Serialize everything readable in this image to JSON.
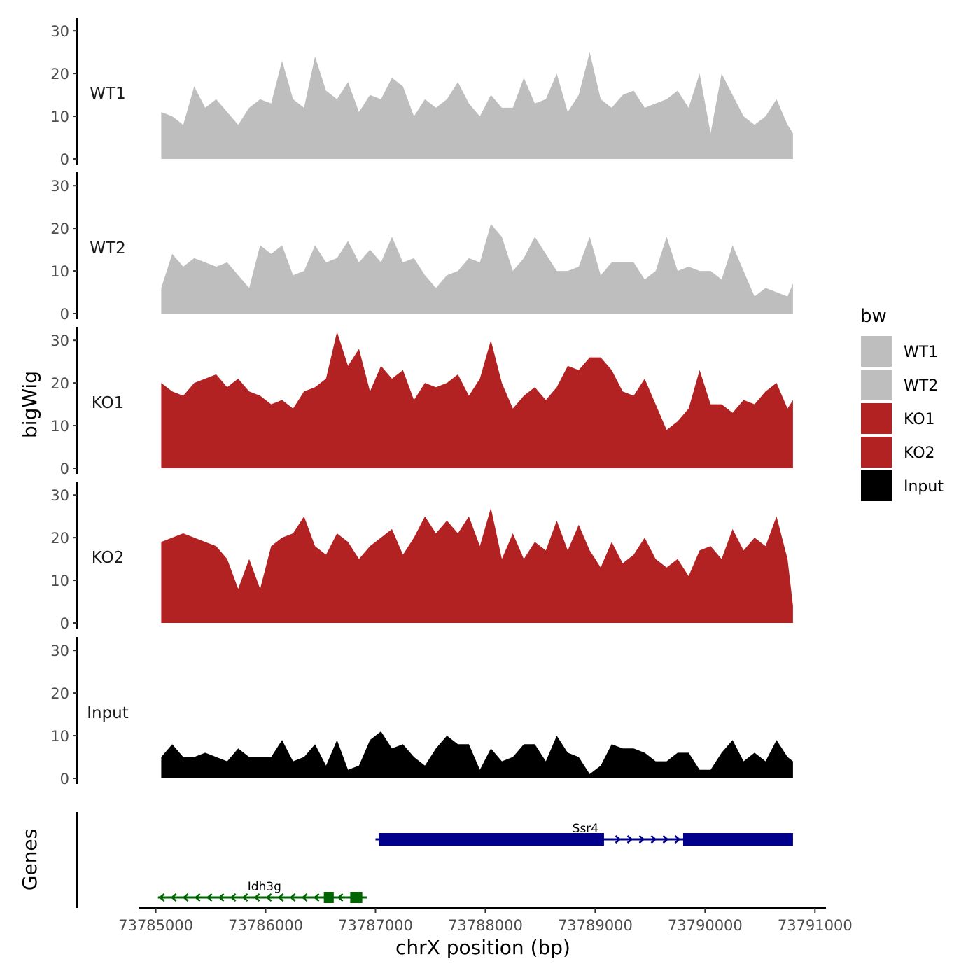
{
  "chart_data": {
    "type": "area",
    "title": "",
    "xlabel": "chrX position (bp)",
    "ylabel": "bigWig",
    "genes_label": "Genes",
    "xlim": [
      73784850,
      73791100
    ],
    "ylim": [
      0,
      32
    ],
    "x_ticks": [
      73785000,
      73786000,
      73787000,
      73788000,
      73789000,
      73790000,
      73791000
    ],
    "x_tick_labels": [
      "73785000",
      "73786000",
      "73787000",
      "73788000",
      "73789000",
      "73790000",
      "73791000"
    ],
    "y_ticks": [
      0,
      10,
      20,
      30
    ],
    "y_tick_labels": [
      "0",
      "10",
      "20",
      "30"
    ],
    "legend": {
      "title": "bw",
      "position": "right",
      "entries": [
        {
          "label": "WT1",
          "color": "#bebebe"
        },
        {
          "label": "WT2",
          "color": "#bebebe"
        },
        {
          "label": "KO1",
          "color": "#b22222"
        },
        {
          "label": "KO2",
          "color": "#b22222"
        },
        {
          "label": "Input",
          "color": "#000000"
        }
      ]
    },
    "x": [
      73785050,
      73785150,
      73785250,
      73785350,
      73785450,
      73785550,
      73785650,
      73785750,
      73785850,
      73785950,
      73786050,
      73786150,
      73786250,
      73786350,
      73786450,
      73786550,
      73786650,
      73786750,
      73786850,
      73786950,
      73787050,
      73787150,
      73787250,
      73787350,
      73787450,
      73787550,
      73787650,
      73787750,
      73787850,
      73787950,
      73788050,
      73788150,
      73788250,
      73788350,
      73788450,
      73788550,
      73788650,
      73788750,
      73788850,
      73788950,
      73789050,
      73789150,
      73789250,
      73789350,
      73789450,
      73789550,
      73789650,
      73789750,
      73789850,
      73789950,
      73790050,
      73790150,
      73790250,
      73790350,
      73790450,
      73790550,
      73790650,
      73790750,
      73790800
    ],
    "series": [
      {
        "name": "WT1",
        "color": "#bebebe",
        "values": [
          11,
          10,
          8,
          17,
          12,
          14,
          11,
          8,
          12,
          14,
          13,
          23,
          14,
          12,
          24,
          16,
          14,
          18,
          11,
          15,
          14,
          19,
          17,
          10,
          14,
          12,
          14,
          18,
          13,
          10,
          15,
          12,
          12,
          19,
          13,
          14,
          20,
          11,
          15,
          25,
          14,
          12,
          15,
          16,
          12,
          13,
          14,
          16,
          12,
          20,
          6,
          20,
          15,
          10,
          8,
          10,
          14,
          8,
          6
        ]
      },
      {
        "name": "WT2",
        "color": "#bebebe",
        "values": [
          6,
          14,
          11,
          13,
          12,
          11,
          12,
          9,
          6,
          16,
          14,
          16,
          9,
          10,
          16,
          12,
          13,
          17,
          12,
          15,
          12,
          18,
          12,
          13,
          9,
          6,
          9,
          10,
          13,
          12,
          21,
          18,
          10,
          13,
          18,
          14,
          10,
          10,
          11,
          18,
          9,
          12,
          12,
          12,
          8,
          10,
          18,
          10,
          11,
          10,
          10,
          8,
          16,
          10,
          4,
          6,
          5,
          4,
          7
        ]
      },
      {
        "name": "KO1",
        "color": "#b22222",
        "values": [
          20,
          18,
          17,
          20,
          21,
          22,
          19,
          21,
          18,
          17,
          15,
          16,
          14,
          18,
          19,
          21,
          32,
          24,
          28,
          18,
          24,
          21,
          23,
          16,
          20,
          19,
          20,
          22,
          17,
          21,
          30,
          20,
          14,
          17,
          19,
          16,
          19,
          24,
          23,
          26,
          26,
          23,
          18,
          17,
          21,
          15,
          9,
          11,
          14,
          23,
          15,
          15,
          13,
          16,
          15,
          18,
          20,
          14,
          16
        ]
      },
      {
        "name": "KO2",
        "color": "#b22222",
        "values": [
          19,
          20,
          21,
          20,
          19,
          18,
          15,
          8,
          15,
          8,
          18,
          20,
          21,
          25,
          18,
          16,
          21,
          19,
          15,
          18,
          20,
          22,
          16,
          20,
          25,
          21,
          24,
          21,
          25,
          18,
          27,
          15,
          21,
          15,
          19,
          17,
          24,
          17,
          23,
          17,
          13,
          19,
          14,
          16,
          20,
          15,
          13,
          15,
          11,
          17,
          18,
          15,
          22,
          17,
          20,
          18,
          25,
          15,
          4
        ]
      },
      {
        "name": "Input",
        "color": "#000000",
        "values": [
          5,
          8,
          5,
          5,
          6,
          5,
          4,
          7,
          5,
          5,
          5,
          9,
          4,
          5,
          8,
          3,
          9,
          2,
          3,
          9,
          11,
          7,
          8,
          5,
          3,
          7,
          10,
          8,
          8,
          2,
          7,
          4,
          5,
          8,
          8,
          4,
          10,
          6,
          5,
          1,
          3,
          8,
          7,
          7,
          6,
          4,
          4,
          6,
          6,
          2,
          2,
          6,
          9,
          4,
          6,
          4,
          9,
          5,
          4
        ]
      }
    ],
    "genes": [
      {
        "name": "Ssr4",
        "strand": "+",
        "color": "#00008b",
        "start": 73787000,
        "end": 73790800,
        "exons": [
          [
            73787030,
            73789080
          ],
          [
            73789800,
            73790800
          ]
        ]
      },
      {
        "name": "Idh3g",
        "strand": "-",
        "color": "#006400",
        "start": 73785020,
        "end": 73786920,
        "exons": [
          [
            73786530,
            73786620
          ],
          [
            73786770,
            73786880
          ]
        ]
      }
    ]
  }
}
